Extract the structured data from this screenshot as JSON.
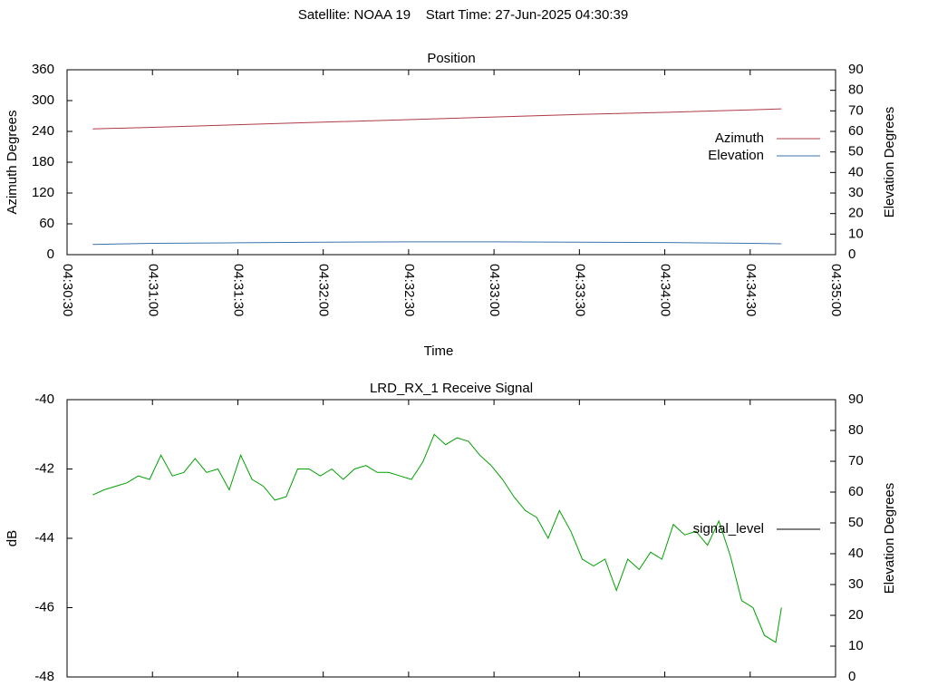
{
  "title": "Satellite: NOAA 19    Start Time: 27-Jun-2025 04:30:39",
  "chart_data": [
    {
      "type": "line",
      "title": "Position",
      "xlabel": "Time",
      "ylabel": "Azimuth Degrees",
      "y2label": "Elevation Degrees",
      "x": [
        "04:30:39",
        "04:31:00",
        "04:31:30",
        "04:32:00",
        "04:32:30",
        "04:33:00",
        "04:33:30",
        "04:34:00",
        "04:34:30",
        "04:34:41"
      ],
      "series": [
        {
          "name": "Azimuth",
          "color": "#b03a48",
          "values": [
            245,
            248,
            253,
            258,
            263,
            268,
            273,
            277,
            282,
            284
          ]
        },
        {
          "name": "Elevation",
          "color": "#3a72aa",
          "axis": "y2",
          "values": [
            5,
            5.5,
            5.8,
            6.1,
            6.2,
            6.2,
            6.1,
            5.9,
            5.5,
            5.3
          ]
        }
      ],
      "xlim": [
        "04:30:30",
        "04:35:00"
      ],
      "xticks": [
        "04:30:30",
        "04:31:00",
        "04:31:30",
        "04:32:00",
        "04:32:30",
        "04:33:00",
        "04:33:30",
        "04:34:00",
        "04:34:30",
        "04:35:00"
      ],
      "ylim": [
        0,
        360
      ],
      "yticks": [
        0,
        60,
        120,
        180,
        240,
        300,
        360
      ],
      "y2lim": [
        0,
        90
      ],
      "y2ticks": [
        0,
        10,
        20,
        30,
        40,
        50,
        60,
        70,
        80,
        90
      ],
      "legend": "right"
    },
    {
      "type": "line",
      "title": "LRD_RX_1 Receive Signal",
      "ylabel": "dB",
      "y2label": "Elevation Degrees",
      "x": [
        "04:30:39",
        "04:30:43",
        "04:30:47",
        "04:30:51",
        "04:30:55",
        "04:30:59",
        "04:31:03",
        "04:31:07",
        "04:31:11",
        "04:31:15",
        "04:31:19",
        "04:31:23",
        "04:31:27",
        "04:31:31",
        "04:31:35",
        "04:31:39",
        "04:31:43",
        "04:31:47",
        "04:31:51",
        "04:31:55",
        "04:31:59",
        "04:32:03",
        "04:32:07",
        "04:32:11",
        "04:32:15",
        "04:32:19",
        "04:32:23",
        "04:32:27",
        "04:32:31",
        "04:32:35",
        "04:32:39",
        "04:32:43",
        "04:32:47",
        "04:32:51",
        "04:32:55",
        "04:32:59",
        "04:33:03",
        "04:33:07",
        "04:33:11",
        "04:33:15",
        "04:33:19",
        "04:33:23",
        "04:33:27",
        "04:33:31",
        "04:33:35",
        "04:33:39",
        "04:33:43",
        "04:33:47",
        "04:33:51",
        "04:33:55",
        "04:33:59",
        "04:34:03",
        "04:34:07",
        "04:34:11",
        "04:34:15",
        "04:34:19",
        "04:34:23",
        "04:34:27",
        "04:34:31",
        "04:34:35",
        "04:34:39",
        "04:34:41"
      ],
      "series": [
        {
          "name": "signal_level",
          "color": "#00a000",
          "legend_color": "#000000",
          "values": [
            -42.75,
            -42.6,
            -42.5,
            -42.4,
            -42.2,
            -42.3,
            -41.6,
            -42.2,
            -42.1,
            -41.7,
            -42.1,
            -42.0,
            -42.6,
            -41.6,
            -42.3,
            -42.5,
            -42.9,
            -42.8,
            -42.0,
            -42.0,
            -42.2,
            -42.0,
            -42.3,
            -42.0,
            -41.9,
            -42.1,
            -42.1,
            -42.2,
            -42.3,
            -41.8,
            -41.0,
            -41.3,
            -41.1,
            -41.2,
            -41.6,
            -41.9,
            -42.3,
            -42.8,
            -43.2,
            -43.4,
            -44.0,
            -43.2,
            -43.8,
            -44.6,
            -44.8,
            -44.6,
            -45.5,
            -44.6,
            -44.9,
            -44.4,
            -44.6,
            -43.6,
            -43.9,
            -43.8,
            -44.2,
            -43.5,
            -44.5,
            -45.8,
            -46.0,
            -46.8,
            -47.0,
            -46.0
          ]
        }
      ],
      "xlim": [
        "04:30:30",
        "04:35:00"
      ],
      "ylim": [
        -48,
        -40
      ],
      "yticks": [
        -48,
        -46,
        -44,
        -42,
        -40
      ],
      "y2lim": [
        0,
        90
      ],
      "y2ticks": [
        0,
        10,
        20,
        30,
        40,
        50,
        60,
        70,
        80,
        90
      ],
      "legend": "right"
    }
  ]
}
